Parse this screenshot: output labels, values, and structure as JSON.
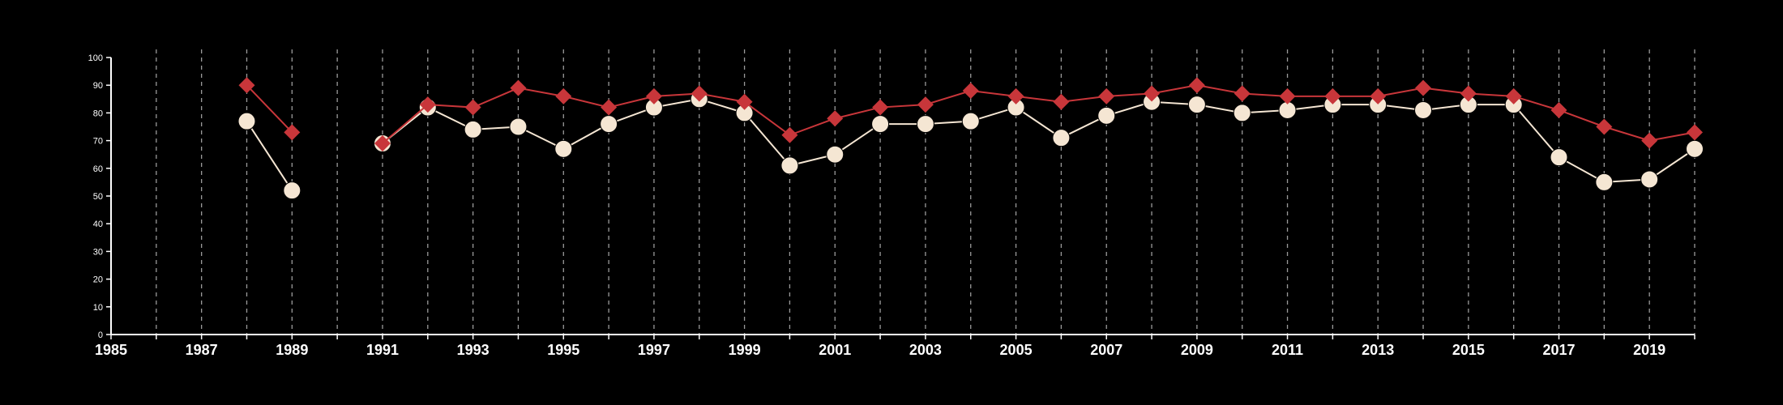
{
  "chart_data": {
    "type": "line",
    "title": "",
    "xlabel": "",
    "ylabel": "",
    "xlim": [
      1985,
      2020
    ],
    "ylim": [
      0,
      100
    ],
    "yticks": [
      0,
      10,
      20,
      30,
      40,
      50,
      60,
      70,
      80,
      90,
      100
    ],
    "xtick_labels": [
      1985,
      1987,
      1989,
      1991,
      1993,
      1995,
      1997,
      1999,
      2001,
      2003,
      2005,
      2007,
      2009,
      2011,
      2013,
      2015,
      2017,
      2019
    ],
    "grid": "vertical dashed lines at every year",
    "legend": "none",
    "x": [
      1985,
      1986,
      1987,
      1988,
      1989,
      1990,
      1991,
      1992,
      1993,
      1994,
      1995,
      1996,
      1997,
      1998,
      1999,
      2000,
      2001,
      2002,
      2003,
      2004,
      2005,
      2006,
      2007,
      2008,
      2009,
      2010,
      2011,
      2012,
      2013,
      2014,
      2015,
      2016,
      2017,
      2018,
      2019,
      2020
    ],
    "series": [
      {
        "marker": "diamond",
        "color": "#c8363a",
        "values": [
          null,
          null,
          null,
          90,
          73,
          null,
          69,
          83,
          82,
          89,
          86,
          82,
          86,
          87,
          84,
          72,
          78,
          82,
          83,
          88,
          86,
          84,
          86,
          87,
          90,
          87,
          86,
          86,
          86,
          89,
          87,
          86,
          81,
          75,
          70,
          73
        ]
      },
      {
        "marker": "circle",
        "color": "#f5e6d3",
        "values": [
          null,
          null,
          null,
          77,
          52,
          null,
          69,
          82,
          74,
          75,
          67,
          76,
          82,
          85,
          80,
          61,
          65,
          76,
          76,
          77,
          82,
          71,
          79,
          84,
          83,
          80,
          81,
          83,
          83,
          81,
          83,
          83,
          64,
          55,
          56,
          67
        ]
      }
    ]
  }
}
